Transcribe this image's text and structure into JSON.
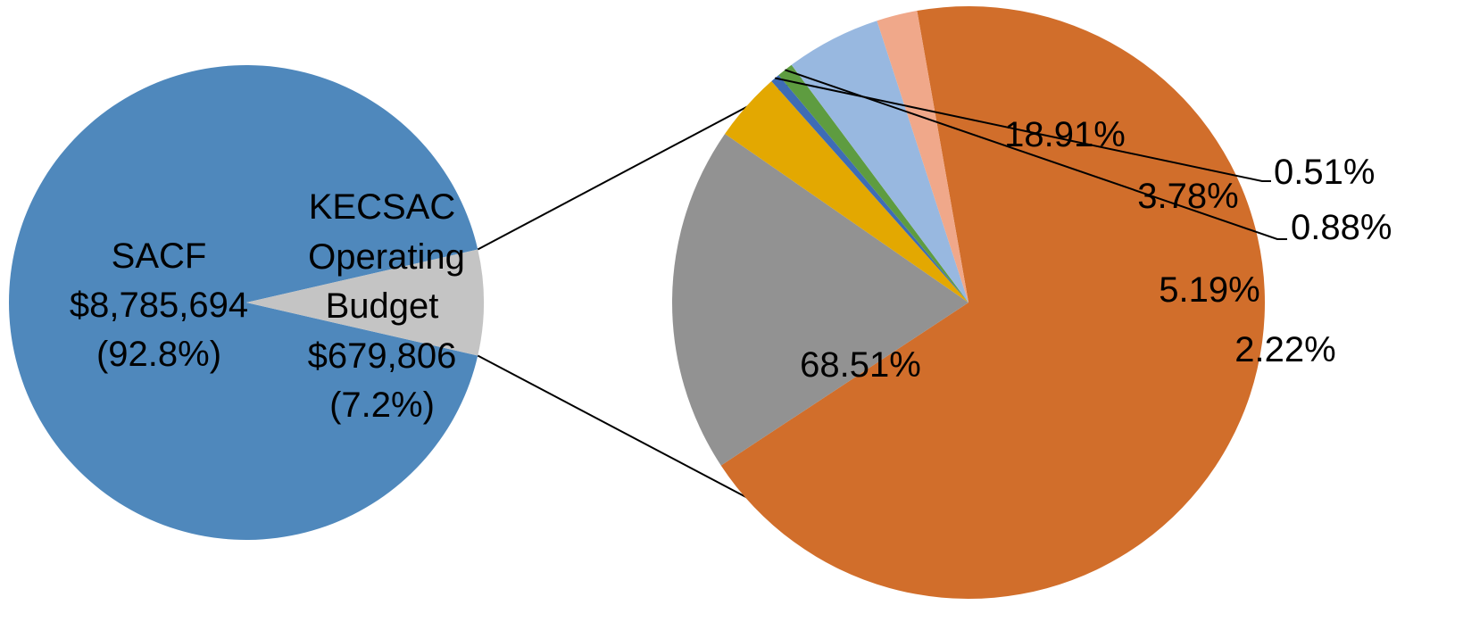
{
  "chart_data": {
    "type": "pie",
    "title": "",
    "main_pie": {
      "slices": [
        {
          "line1": "SACF",
          "line2": "$8,785,694",
          "line3": "(92.8%)",
          "value": 8785694,
          "percent": 92.8,
          "color": "#4F88BC"
        },
        {
          "line1": "KECSAC",
          "line2": "Operating",
          "line3": "Budget",
          "line4": "$679,806",
          "line5": "(7.2%)",
          "value": 679806,
          "percent": 7.2,
          "color": "#C4C4C4"
        }
      ]
    },
    "breakdown_pie": {
      "slices": [
        {
          "label": "68.51%",
          "value": 68.51,
          "color": "#D16E2B"
        },
        {
          "label": "18.91%",
          "value": 18.91,
          "color": "#929292"
        },
        {
          "label": "3.78%",
          "value": 3.78,
          "color": "#E3A801"
        },
        {
          "label": "0.51%",
          "value": 0.51,
          "color": "#3E6CB5"
        },
        {
          "label": "0.88%",
          "value": 0.88,
          "color": "#5E9C40"
        },
        {
          "label": "5.19%",
          "value": 5.19,
          "color": "#98B8E0"
        },
        {
          "label": "2.22%",
          "value": 2.22,
          "color": "#F0A88A"
        }
      ]
    }
  }
}
